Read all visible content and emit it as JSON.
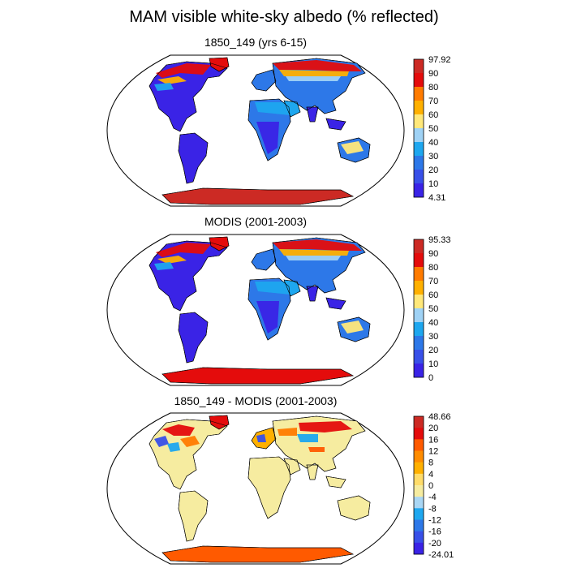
{
  "title": "MAM visible white-sky albedo (% reflected)",
  "panels": [
    {
      "id": "model",
      "subtitle": "1850_149 (yrs 6-15)",
      "colorbar_labels": [
        "97.92",
        "90",
        "80",
        "70",
        "60",
        "50",
        "40",
        "30",
        "20",
        "10",
        "4.31"
      ],
      "colorbar_colors": [
        "#cc2a24",
        "#e40c0c",
        "#ff7b00",
        "#ffb000",
        "#ffe87a",
        "#9fd2f5",
        "#1ea7ef",
        "#2d78e8",
        "#3850e8",
        "#3a23e6"
      ],
      "variant": "absolute"
    },
    {
      "id": "obs",
      "subtitle": "MODIS (2001-2003)",
      "colorbar_labels": [
        "95.33",
        "90",
        "80",
        "70",
        "60",
        "50",
        "40",
        "30",
        "20",
        "10",
        "0"
      ],
      "colorbar_colors": [
        "#cc2a24",
        "#e40c0c",
        "#ff7b00",
        "#ffb000",
        "#ffe87a",
        "#9fd2f5",
        "#1ea7ef",
        "#2d78e8",
        "#3850e8",
        "#3a23e6"
      ],
      "variant": "absolute"
    },
    {
      "id": "diff",
      "subtitle": "1850_149 - MODIS (2001-2003)",
      "colorbar_labels": [
        "48.66",
        "20",
        "16",
        "12",
        "8",
        "4",
        "0",
        "-4",
        "-8",
        "-12",
        "-16",
        "-20",
        "-24.01"
      ],
      "colorbar_colors": [
        "#cc2a24",
        "#e40c0c",
        "#ff5a00",
        "#ff8c00",
        "#ffb000",
        "#ffdc6a",
        "#f6eca0",
        "#a9d6f4",
        "#1ea7ef",
        "#2d78e8",
        "#3850e8",
        "#3a23e6"
      ],
      "variant": "difference"
    }
  ]
}
